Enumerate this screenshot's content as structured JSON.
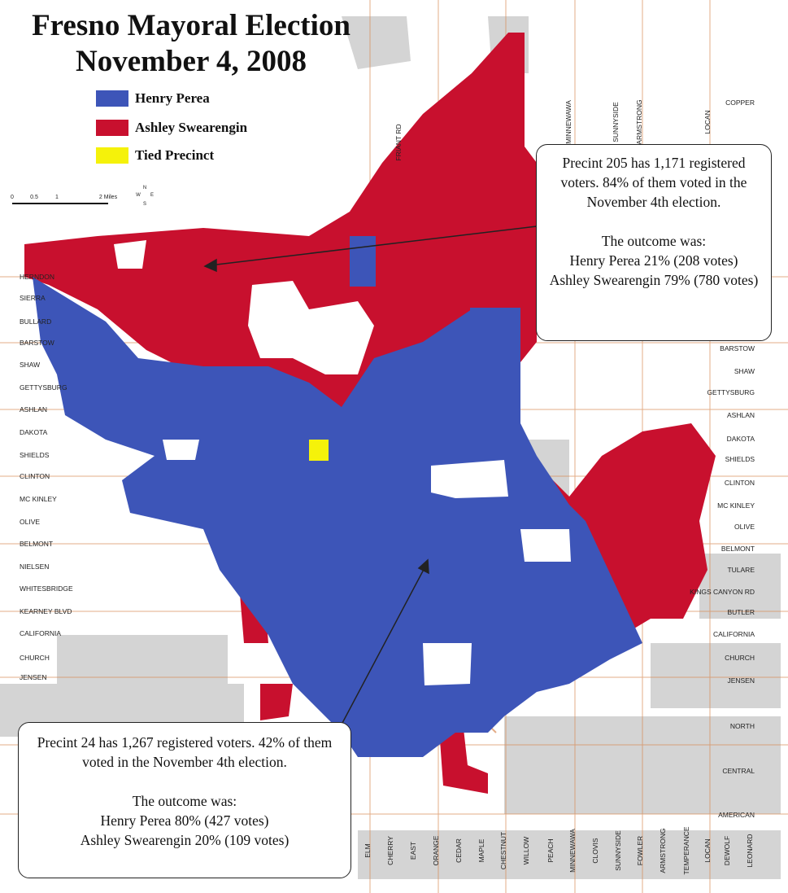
{
  "title": [
    "Fresno Mayoral Election",
    "November 4, 2008"
  ],
  "legend": [
    {
      "label": "Henry Perea",
      "color": "#3d55b8"
    },
    {
      "label": "Ashley Swearengin",
      "color": "#c8102e"
    },
    {
      "label": "Tied Precinct",
      "color": "#f5f20a"
    }
  ],
  "scale": [
    "0",
    "0.5",
    "1",
    "2 Miles"
  ],
  "compass": [
    "N",
    "W",
    "E",
    "S"
  ],
  "callouts": [
    [
      "Precint 205 has 1,171 registered voters. 84% of them voted in the November 4th election.",
      "The outcome was:",
      "Henry Perea 21% (208 votes)",
      "Ashley Swearengin 79% (780 votes)"
    ],
    [
      "Precint 24 has 1,267 registered voters. 42% of them voted in the November 4th election.",
      "The outcome was:",
      "Henry Perea 80% (427 votes)",
      "Ashley Swearengin 20% (109 votes)"
    ]
  ],
  "streets_west": [
    "HERNDON",
    "SIERRA",
    "BULLARD",
    "BARSTOW",
    "SHAW",
    "GETTYSBURG",
    "ASHLAN",
    "DAKOTA",
    "SHIELDS",
    "CLINTON",
    "MC KINLEY",
    "OLIVE",
    "BELMONT",
    "NIELSEN",
    "WHITESBRIDGE",
    "KEARNEY BLVD",
    "CALIFORNIA",
    "CHURCH",
    "JENSEN"
  ],
  "streets_east": [
    "COPPER",
    "BARSTOW",
    "SHAW",
    "GETTYSBURG",
    "ASHLAN",
    "DAKOTA",
    "SHIELDS",
    "CLINTON",
    "MC KINLEY",
    "OLIVE",
    "BELMONT",
    "TULARE",
    "KINGS CANYON RD",
    "BUTLER",
    "CALIFORNIA",
    "CHURCH",
    "JENSEN",
    "NORTH",
    "CENTRAL",
    "AMERICAN"
  ],
  "streets_north": [
    "FRIANT RD",
    "MINNEWAWA",
    "SUNNYSIDE",
    "ARMSTRONG",
    "LOCAN"
  ],
  "streets_south": [
    "ELM",
    "CHERRY",
    "EAST",
    "ORANGE",
    "CEDAR",
    "MAPLE",
    "CHESTNUT",
    "WILLOW",
    "PEACH",
    "MINNEWAWA",
    "CLOVIS",
    "SUNNYSIDE",
    "FOWLER",
    "ARMSTRONG",
    "TEMPERANCE",
    "LOCAN",
    "DEWOLF",
    "LEONARD"
  ]
}
